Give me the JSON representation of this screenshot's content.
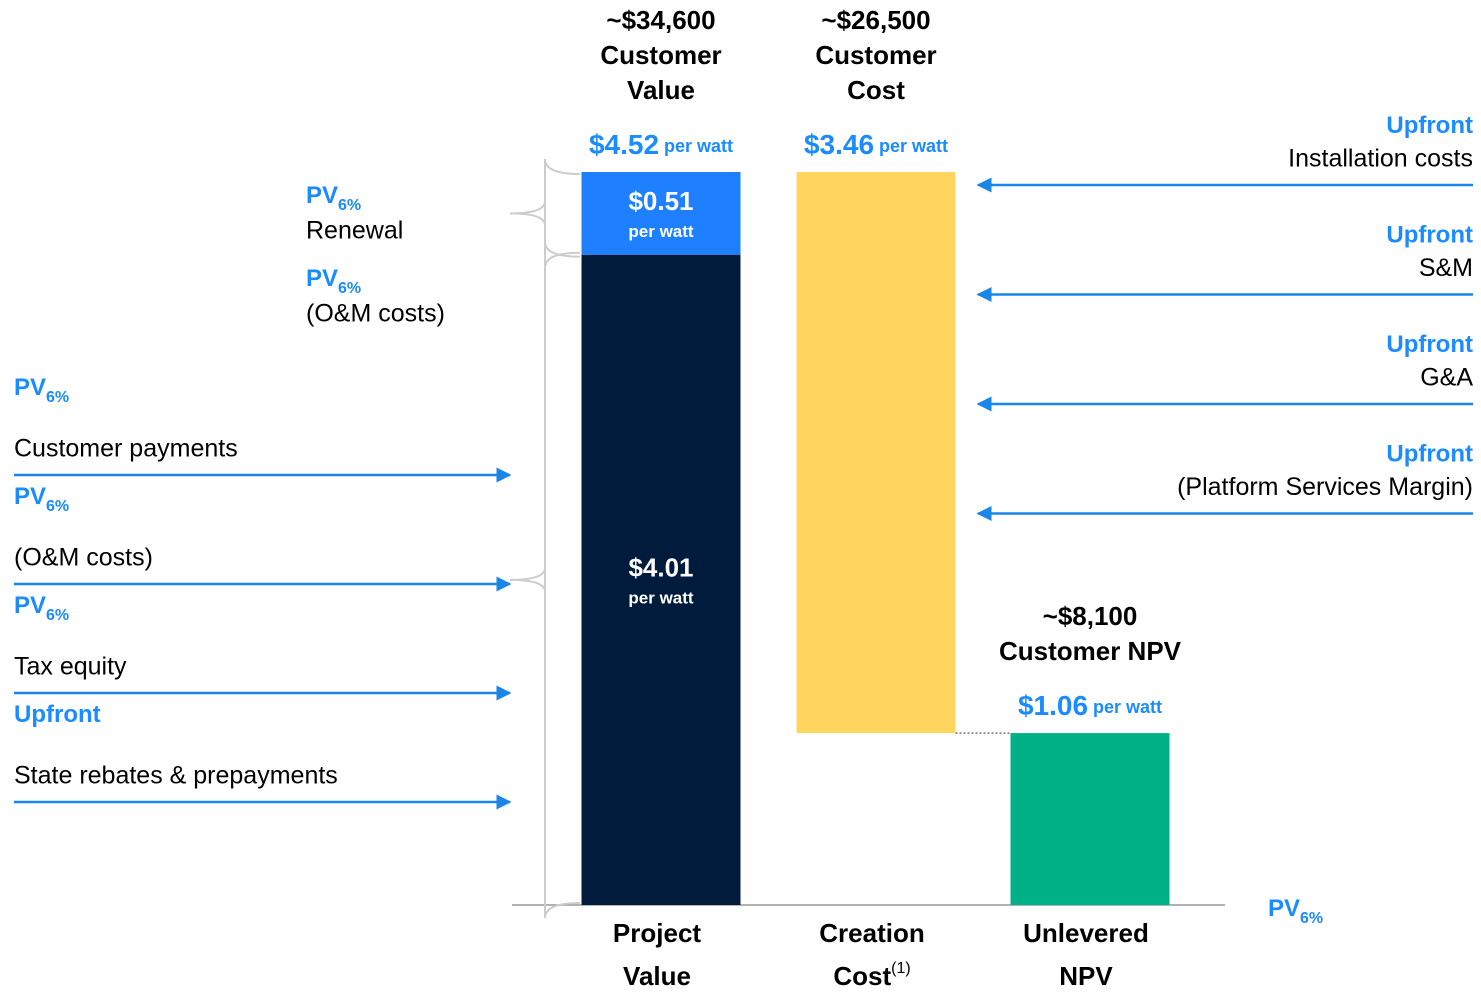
{
  "chart_data": {
    "type": "waterfall",
    "unit_label": "per watt",
    "axis_label": {
      "text": "PV",
      "sub": "6%"
    },
    "label_color": "#1a8cff",
    "arrow_color": "#1a86e8",
    "bars": [
      {
        "kind": "stack",
        "category": {
          "lines": [
            "Project",
            "Value"
          ]
        },
        "headline": [
          "~$34,600",
          "Customer",
          "Value"
        ],
        "total": {
          "value": 4.52,
          "label": "$4.52"
        },
        "segments": [
          {
            "value": 4.01,
            "value_label": "$4.01",
            "color": "#001b3b"
          },
          {
            "value": 0.51,
            "value_label": "$0.51",
            "color": "#1e80ff"
          }
        ]
      },
      {
        "kind": "decrease",
        "category": {
          "lines": [
            "Creation",
            "Cost"
          ],
          "note": "(1)"
        },
        "headline": [
          "~$26,500",
          "Customer",
          "Cost"
        ],
        "segments": [
          {
            "value": 3.46,
            "value_label": "$3.46",
            "color": "#ffd55f"
          }
        ]
      },
      {
        "kind": "result",
        "category": {
          "lines": [
            "Unlevered",
            "NPV"
          ]
        },
        "headline": [
          "~$8,100",
          "Customer NPV"
        ],
        "segments": [
          {
            "value": 1.06,
            "value_label": "$1.06",
            "color": "#00b086"
          }
        ]
      }
    ],
    "left_upper_items": [
      {
        "tag": "PV",
        "sub": "6%",
        "text": "Renewal"
      },
      {
        "tag": "PV",
        "sub": "6%",
        "text": "(O&M costs)"
      }
    ],
    "left_lower_items": [
      {
        "tag": "PV",
        "sub": "6%",
        "text": "Customer payments"
      },
      {
        "tag": "PV",
        "sub": "6%",
        "text": "(O&M costs)"
      },
      {
        "tag": "PV",
        "sub": "6%",
        "text": "Tax equity"
      },
      {
        "tag": "Upfront",
        "text": "State rebates & prepayments"
      }
    ],
    "right_items": [
      {
        "tag": "Upfront",
        "text": "Installation costs"
      },
      {
        "tag": "Upfront",
        "text": "S&M"
      },
      {
        "tag": "Upfront",
        "text": "G&A"
      },
      {
        "tag": "Upfront",
        "text": "(Platform Services Margin)"
      }
    ]
  }
}
